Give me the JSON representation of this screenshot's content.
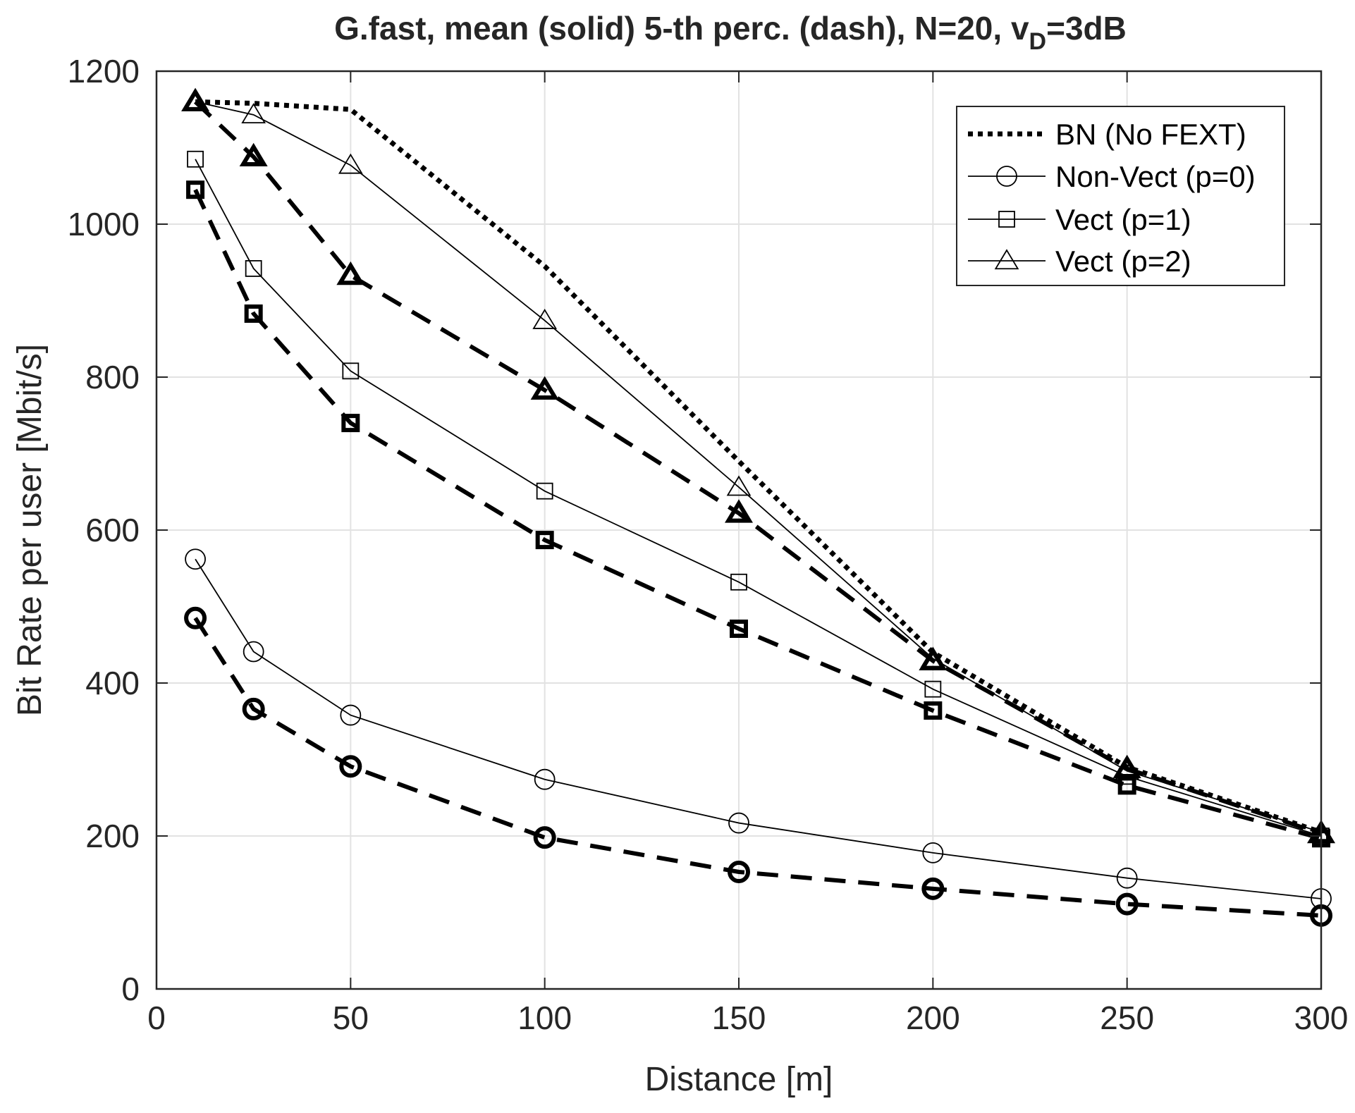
{
  "chart_data": {
    "type": "line",
    "title": {
      "main": "G.fast, mean (solid) 5-th perc. (dash), N=20, v",
      "subscript": "D",
      "suffix": "=3dB"
    },
    "xlabel": "Distance [m]",
    "ylabel": "Bit Rate per user [Mbit/s]",
    "xlim": [
      0,
      300
    ],
    "ylim": [
      0,
      1200
    ],
    "xticks": [
      0,
      50,
      100,
      150,
      200,
      250,
      300
    ],
    "yticks": [
      0,
      200,
      400,
      600,
      800,
      1000,
      1200
    ],
    "grid": true,
    "legend_position": "top-right",
    "x": [
      10,
      25,
      50,
      100,
      150,
      200,
      250,
      300
    ],
    "series": [
      {
        "name": "BN (No FEXT)",
        "style": "dotted",
        "marker": "none",
        "values": [
          1160,
          1158,
          1150,
          945,
          690,
          440,
          290,
          205
        ]
      },
      {
        "name": "Non-Vect (p=0)",
        "style": "solid",
        "marker": "circle",
        "values": [
          562,
          441,
          358,
          274,
          217,
          178,
          145,
          118
        ]
      },
      {
        "name": "Vect (p=1)",
        "style": "solid",
        "marker": "square",
        "values": [
          1085,
          942,
          808,
          651,
          532,
          392,
          278,
          200
        ]
      },
      {
        "name": "Vect (p=2)",
        "style": "solid",
        "marker": "triangle",
        "values": [
          1160,
          1143,
          1077,
          874,
          656,
          432,
          285,
          205
        ]
      },
      {
        "name": "Non-Vect (p=0) 5-th perc.",
        "style": "dashed",
        "marker": "circle",
        "values": [
          485,
          366,
          291,
          198,
          153,
          131,
          111,
          96
        ]
      },
      {
        "name": "Vect (p=1) 5-th perc.",
        "style": "dashed",
        "marker": "square",
        "values": [
          1045,
          883,
          740,
          587,
          471,
          364,
          266,
          197
        ]
      },
      {
        "name": "Vect (p=2) 5-th perc.",
        "style": "dashed",
        "marker": "triangle",
        "values": [
          1160,
          1088,
          933,
          783,
          622,
          429,
          288,
          203
        ]
      }
    ]
  }
}
